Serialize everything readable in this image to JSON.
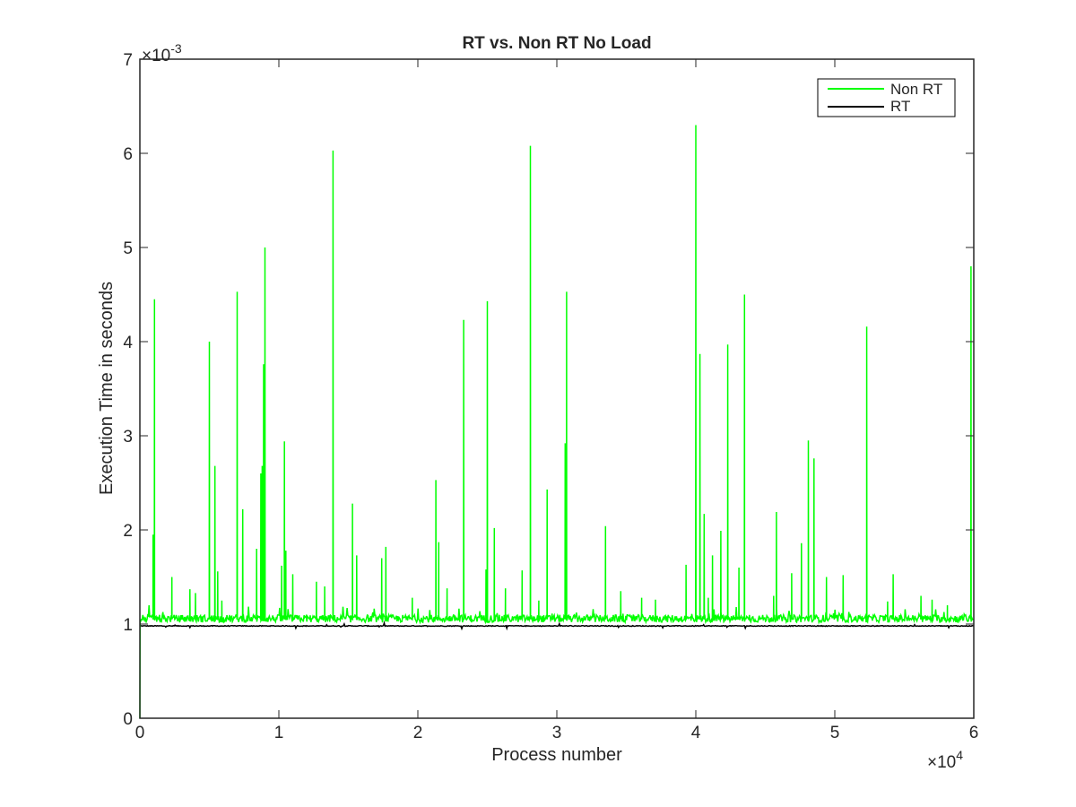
{
  "chart_data": {
    "type": "line",
    "title": "RT vs. Non RT No Load",
    "xlabel": "Process number",
    "ylabel": "Execution Time in seconds",
    "x_multiplier": {
      "base": "×10",
      "exponent": "4"
    },
    "y_multiplier": {
      "base": "×10",
      "exponent": "-3"
    },
    "xlim": [
      0,
      60000
    ],
    "ylim": [
      0,
      0.007
    ],
    "x_ticks": [
      0,
      10000,
      20000,
      30000,
      40000,
      50000,
      60000
    ],
    "x_tick_labels": [
      "0",
      "1",
      "2",
      "3",
      "4",
      "5",
      "6"
    ],
    "y_ticks": [
      0,
      0.001,
      0.002,
      0.003,
      0.004,
      0.005,
      0.006,
      0.007
    ],
    "y_tick_labels": [
      "0",
      "1",
      "2",
      "3",
      "4",
      "5",
      "6",
      "7"
    ],
    "grid": false,
    "legend_position": "top-right",
    "series": [
      {
        "name": "Non RT",
        "color": "#00ff00",
        "baseline": 0.00105,
        "start_point": [
          0,
          0
        ],
        "spikes": [
          [
            1050,
            0.00445
          ],
          [
            950,
            0.00195
          ],
          [
            2300,
            0.0015
          ],
          [
            3600,
            0.00137
          ],
          [
            4000,
            0.00133
          ],
          [
            5000,
            0.004
          ],
          [
            5400,
            0.00268
          ],
          [
            5600,
            0.00156
          ],
          [
            5900,
            0.00125
          ],
          [
            7000,
            0.00453
          ],
          [
            7400,
            0.00222
          ],
          [
            8400,
            0.0018
          ],
          [
            8700,
            0.0026
          ],
          [
            8800,
            0.00268
          ],
          [
            8900,
            0.00376
          ],
          [
            9000,
            0.005
          ],
          [
            10200,
            0.00162
          ],
          [
            10400,
            0.00294
          ],
          [
            10500,
            0.00178
          ],
          [
            11000,
            0.00153
          ],
          [
            12700,
            0.00145
          ],
          [
            13300,
            0.0014
          ],
          [
            13900,
            0.00603
          ],
          [
            15300,
            0.00228
          ],
          [
            15600,
            0.00173
          ],
          [
            17400,
            0.0017
          ],
          [
            17700,
            0.00182
          ],
          [
            19600,
            0.00128
          ],
          [
            21300,
            0.00253
          ],
          [
            21500,
            0.00187
          ],
          [
            22100,
            0.00138
          ],
          [
            23300,
            0.00423
          ],
          [
            24900,
            0.00158
          ],
          [
            25000,
            0.00443
          ],
          [
            25500,
            0.00202
          ],
          [
            26300,
            0.00138
          ],
          [
            27500,
            0.00157
          ],
          [
            28100,
            0.00608
          ],
          [
            28700,
            0.00125
          ],
          [
            29300,
            0.00243
          ],
          [
            30600,
            0.00292
          ],
          [
            30700,
            0.00453
          ],
          [
            33500,
            0.00204
          ],
          [
            34600,
            0.00135
          ],
          [
            36100,
            0.00128
          ],
          [
            37100,
            0.00126
          ],
          [
            39300,
            0.00163
          ],
          [
            40000,
            0.0063
          ],
          [
            40300,
            0.00387
          ],
          [
            40600,
            0.00217
          ],
          [
            40900,
            0.00128
          ],
          [
            41200,
            0.00173
          ],
          [
            41800,
            0.00199
          ],
          [
            42300,
            0.00397
          ],
          [
            43100,
            0.0016
          ],
          [
            43500,
            0.0045
          ],
          [
            45600,
            0.0013
          ],
          [
            45800,
            0.00219
          ],
          [
            46900,
            0.00154
          ],
          [
            47600,
            0.00186
          ],
          [
            48100,
            0.00295
          ],
          [
            48500,
            0.00276
          ],
          [
            49400,
            0.0015
          ],
          [
            50600,
            0.00152
          ],
          [
            52300,
            0.00416
          ],
          [
            53800,
            0.00124
          ],
          [
            54200,
            0.00153
          ],
          [
            56200,
            0.0013
          ],
          [
            57000,
            0.00126
          ],
          [
            58100,
            0.0012
          ],
          [
            59800,
            0.0048
          ]
        ]
      },
      {
        "name": "RT",
        "color": "#000000",
        "baseline": 0.00098,
        "start_point": [
          0,
          0.00098
        ]
      }
    ]
  }
}
